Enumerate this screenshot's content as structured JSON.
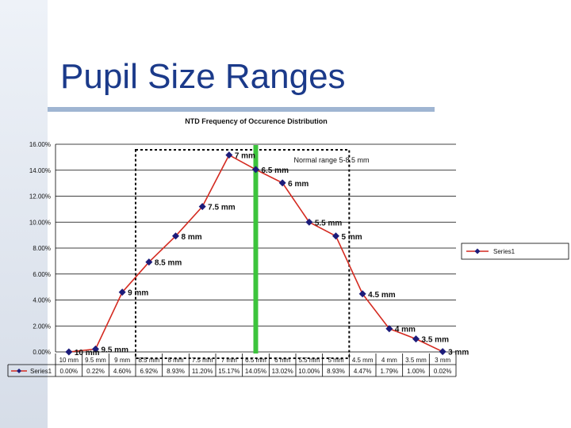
{
  "slide": {
    "title": "Pupil Size Ranges"
  },
  "chart_data": {
    "type": "line",
    "title": "NTD Frequency of Occurence Distribution",
    "categories": [
      "10 mm",
      "9.5 mm",
      "9 mm",
      "8.5 mm",
      "8 mm",
      "7.5 mm",
      "7 mm",
      "6.5 mm",
      "6 mm",
      "5.5 mm",
      "5 mm",
      "4.5 mm",
      "4 mm",
      "3.5 mm",
      "3 mm"
    ],
    "point_labels": [
      "10 mm",
      "9.5 mm",
      "9 mm",
      "8.5 mm",
      "8 mm",
      "7.5 mm",
      "7 mm",
      "6.5 mm",
      "6 mm",
      "5.5 mm",
      "5 mm",
      "4.5 mm",
      "4 mm",
      "3.5 mm",
      "3 mm"
    ],
    "series": [
      {
        "name": "Series1",
        "values": [
          0.0,
          0.22,
          4.6,
          6.92,
          8.93,
          11.2,
          15.17,
          14.05,
          13.02,
          10.0,
          8.93,
          4.47,
          1.79,
          1.0,
          0.02
        ],
        "table_values": [
          "0.00%",
          "0.22%",
          "4.60%",
          "6.92%",
          "8.93%",
          "11.20%",
          "15.17%",
          "14.05%",
          "13.02%",
          "10.00%",
          "8.93%",
          "4.47%",
          "1.79%",
          "1.00%",
          "0.02%"
        ],
        "color": "#d42a20",
        "marker_color": "#1c1c7a"
      }
    ],
    "y_ticks": [
      "16.00%",
      "14.00%",
      "12.00%",
      "10.00%",
      "8.00%",
      "6.00%",
      "4.00%",
      "2.00%",
      "0.00%"
    ],
    "ylim": [
      0,
      16
    ],
    "legend": {
      "label": "Series1",
      "placement": "right"
    },
    "annotations": {
      "normal_range": "Normal range 5-8.5 mm"
    },
    "normal_range_mm": [
      5,
      8.5
    ],
    "marker_line_mm": 6.5,
    "marker_line_color": "#3cc43c",
    "grid": true,
    "data_table": true
  }
}
